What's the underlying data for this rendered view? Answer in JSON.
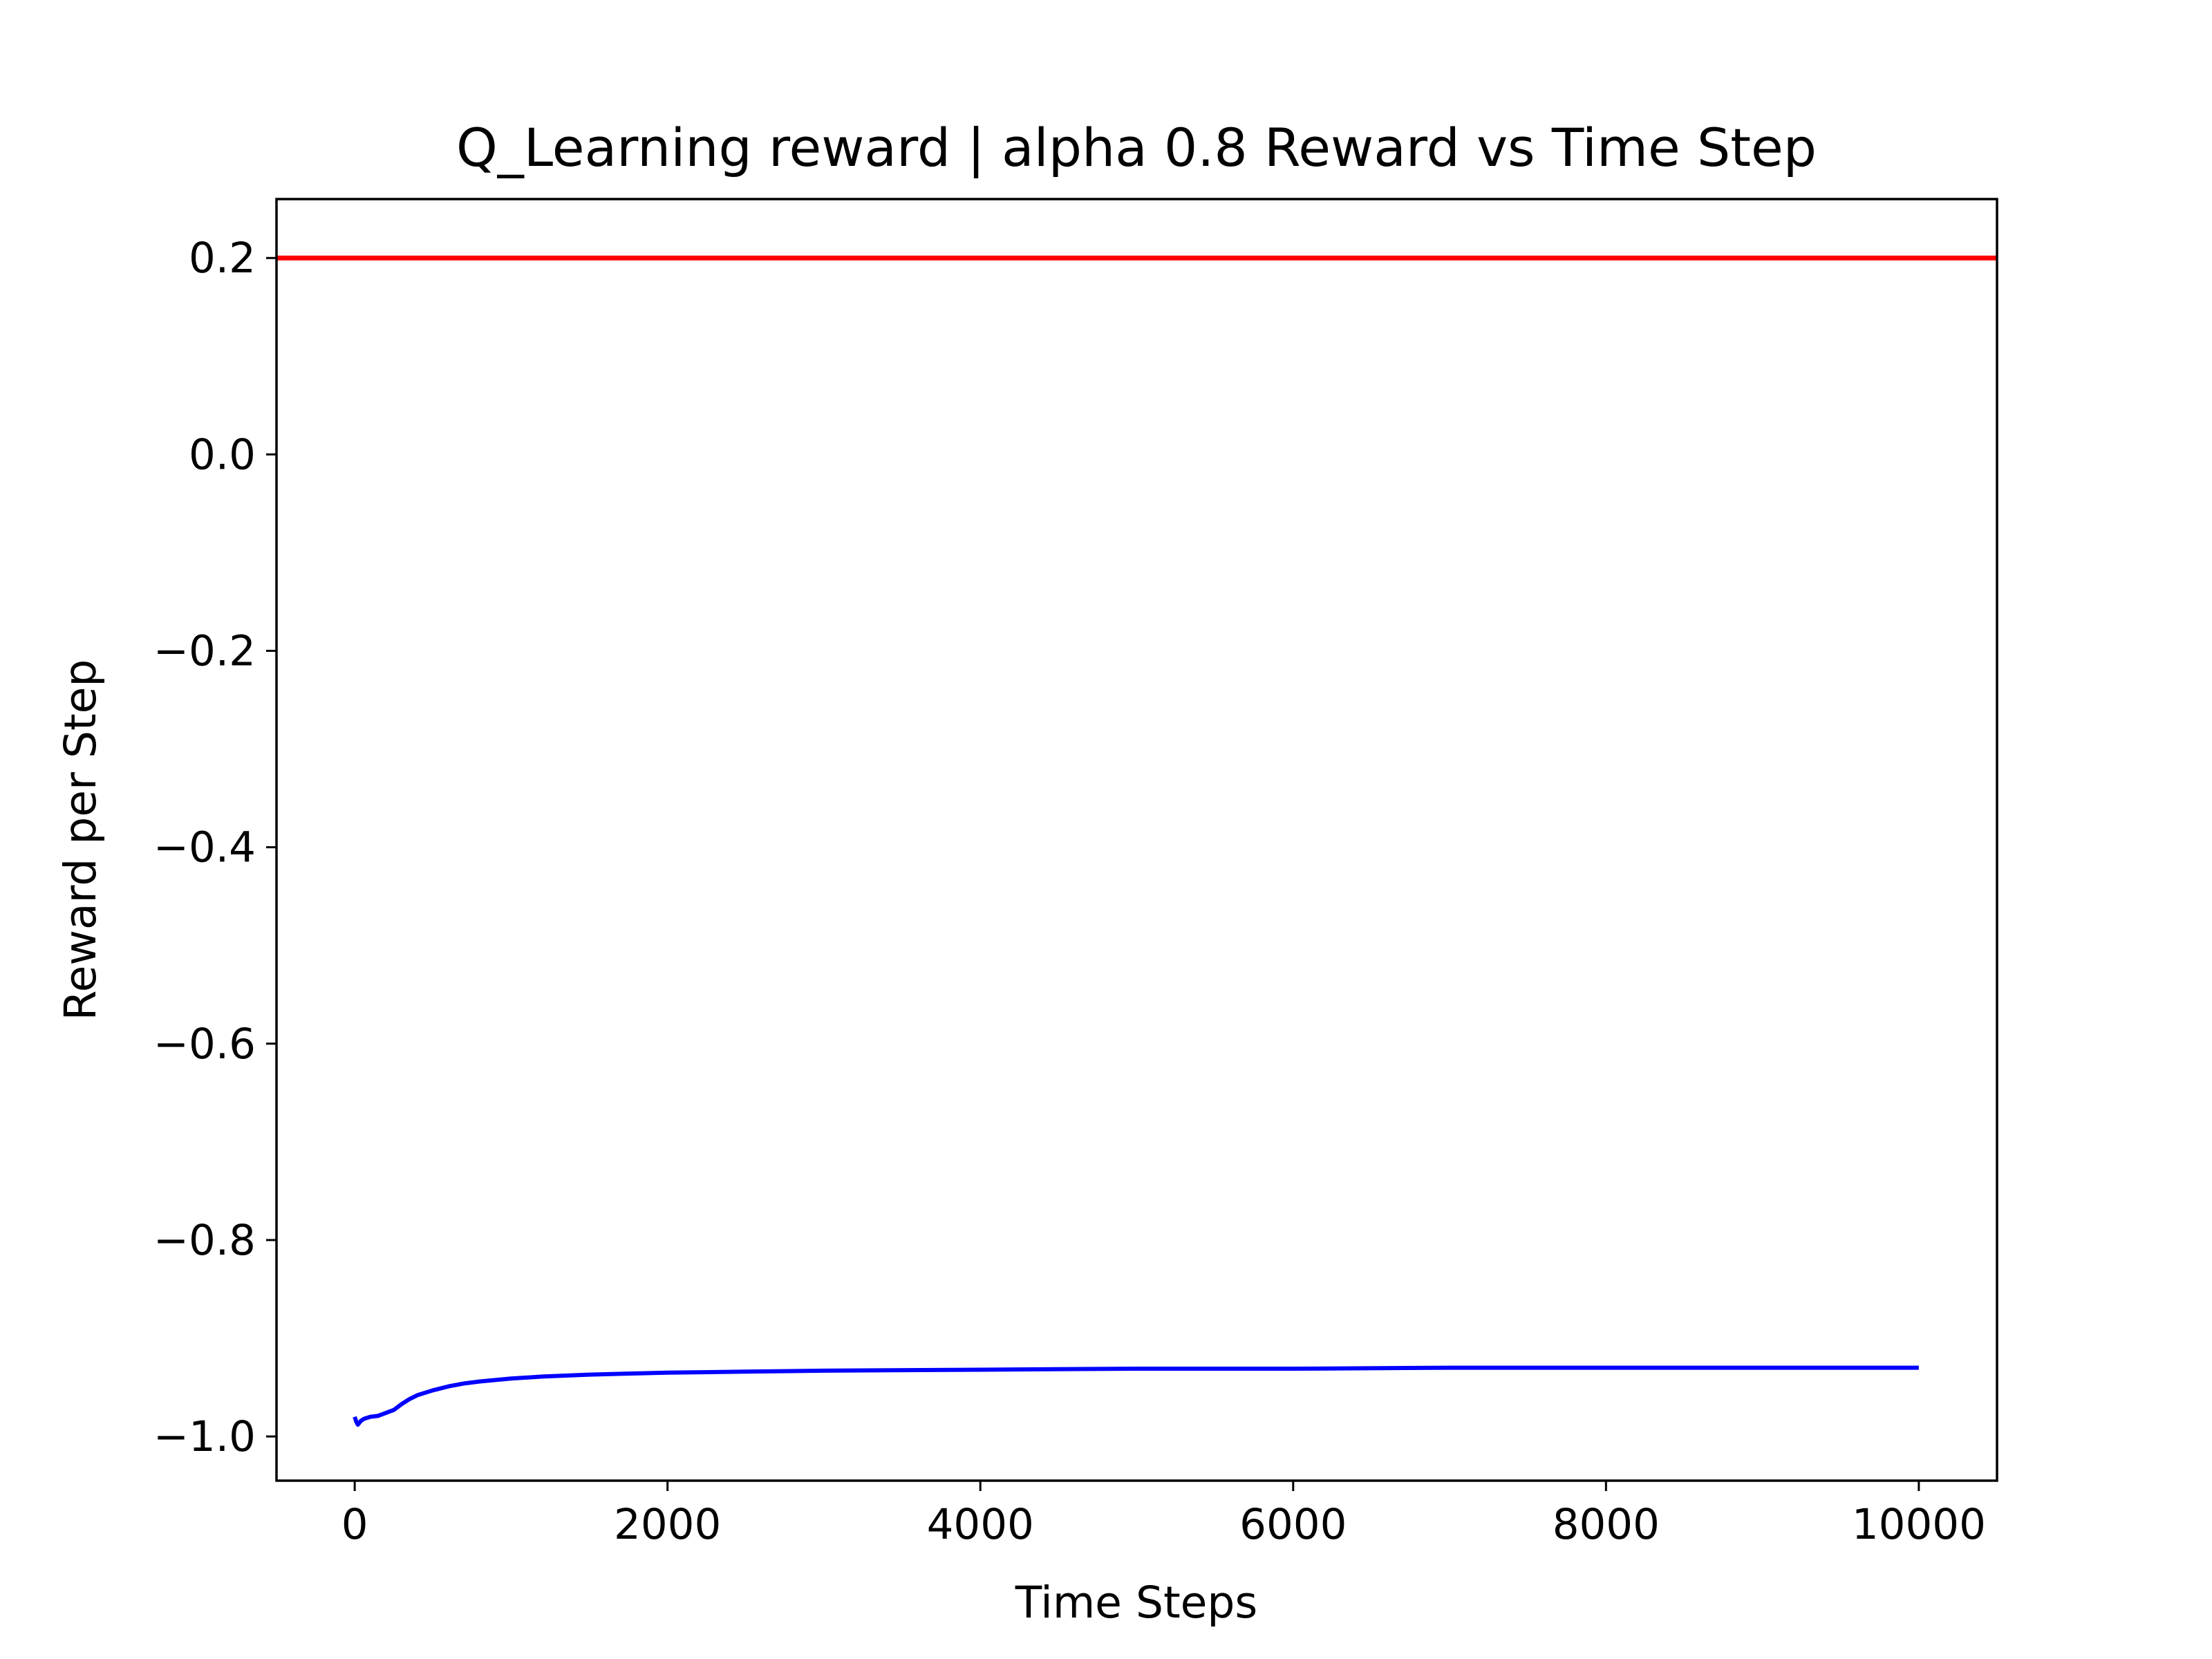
{
  "chart_data": {
    "type": "line",
    "title": "Q_Learning reward | alpha 0.8 Reward vs Time Step",
    "xlabel": "Time Steps",
    "ylabel": "Reward per Step",
    "xlim": [
      -500,
      10500
    ],
    "ylim": [
      -1.045,
      0.26
    ],
    "xticks": [
      0,
      2000,
      4000,
      6000,
      8000,
      10000
    ],
    "xtick_labels": [
      "0",
      "2000",
      "4000",
      "6000",
      "8000",
      "10000"
    ],
    "yticks": [
      0.2,
      0.0,
      -0.2,
      -0.4,
      -0.6,
      -0.8,
      -1.0
    ],
    "ytick_labels": [
      "0.2",
      "0.0",
      "−0.2",
      "−0.4",
      "−0.6",
      "−0.8",
      "−1.0"
    ],
    "grid": false,
    "hline": {
      "y": 0.2,
      "color": "#ff0000"
    },
    "series": [
      {
        "color": "#0000ff",
        "x": [
          0,
          10,
          20,
          40,
          60,
          100,
          150,
          200,
          250,
          300,
          350,
          400,
          500,
          600,
          700,
          800,
          1000,
          1200,
          1500,
          2000,
          2500,
          3000,
          4000,
          5000,
          6000,
          7000,
          8000,
          9000,
          10000
        ],
        "y": [
          -0.98,
          -0.985,
          -0.988,
          -0.984,
          -0.982,
          -0.98,
          -0.979,
          -0.976,
          -0.973,
          -0.967,
          -0.962,
          -0.958,
          -0.953,
          -0.949,
          -0.946,
          -0.944,
          -0.941,
          -0.939,
          -0.937,
          -0.935,
          -0.934,
          -0.933,
          -0.932,
          -0.931,
          -0.931,
          -0.93,
          -0.93,
          -0.93,
          -0.93
        ]
      }
    ]
  }
}
